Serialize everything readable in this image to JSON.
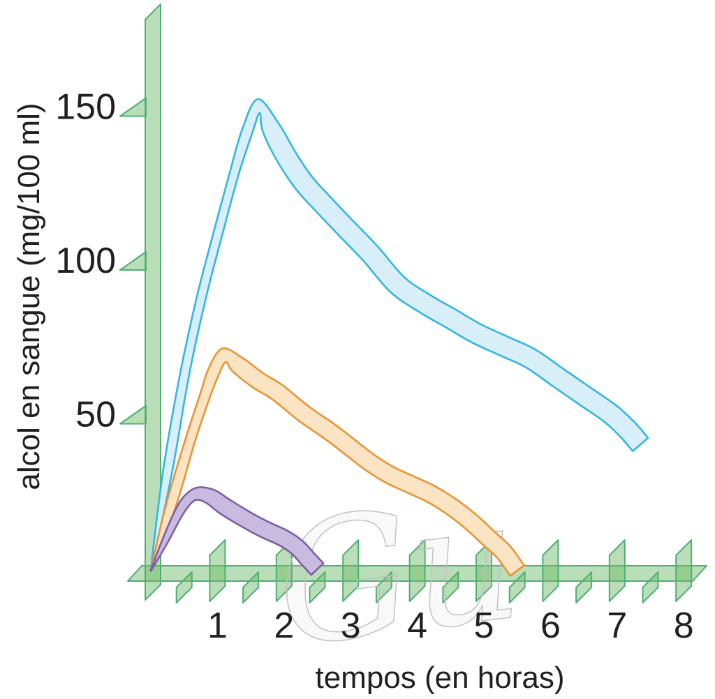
{
  "figure": {
    "watermark": "Gu",
    "background": "#ffffff"
  },
  "colors": {
    "axis_green_stroke": "#4FAF72",
    "axis_green_fill": "rgba(110,185,105,0.48)",
    "text": "#231F20",
    "watermark_gray": "#c1c1c1"
  },
  "chart_data": {
    "type": "line",
    "style": "thick-ribbon-curves-on-3d-green-axes",
    "title": "",
    "xlabel": "tempos (en horas)",
    "ylabel": "alcol en sangue (mg/100 ml)",
    "xlim": [
      0,
      8.45
    ],
    "ylim": [
      0,
      185
    ],
    "xticks": [
      1,
      2,
      3,
      4,
      5,
      6,
      7,
      8
    ],
    "xticks_minor": [
      0.5,
      1.5,
      2.5,
      3.5,
      4.5,
      5.5,
      6.5,
      7.5
    ],
    "yticks": [
      50,
      100,
      150
    ],
    "grid": false,
    "legend": false,
    "series": [
      {
        "name": "blue",
        "stroke": "#33B6E3",
        "fill": "#D8EEF9",
        "peak_t": 1.62,
        "points": [
          [
            0,
            0
          ],
          [
            0.25,
            32
          ],
          [
            0.5,
            63
          ],
          [
            0.75,
            88
          ],
          [
            1.0,
            109
          ],
          [
            1.25,
            129
          ],
          [
            1.45,
            143
          ],
          [
            1.62,
            151
          ],
          [
            1.8,
            144
          ],
          [
            2.05,
            134
          ],
          [
            2.3,
            126
          ],
          [
            2.55,
            120
          ],
          [
            2.9,
            112
          ],
          [
            3.3,
            103
          ],
          [
            3.7,
            93
          ],
          [
            4.1,
            87
          ],
          [
            4.5,
            82
          ],
          [
            4.9,
            77
          ],
          [
            5.3,
            73
          ],
          [
            5.7,
            69
          ],
          [
            6.1,
            63
          ],
          [
            6.5,
            57
          ],
          [
            6.9,
            51
          ],
          [
            7.15,
            46
          ],
          [
            7.35,
            41
          ]
        ]
      },
      {
        "name": "orange",
        "stroke": "#E99434",
        "fill": "#FBE4C4",
        "peak_t": 1.05,
        "points": [
          [
            0,
            0
          ],
          [
            0.3,
            21
          ],
          [
            0.6,
            43
          ],
          [
            0.8,
            56
          ],
          [
            0.95,
            65
          ],
          [
            1.1,
            70
          ],
          [
            1.3,
            67
          ],
          [
            1.6,
            62
          ],
          [
            1.9,
            58
          ],
          [
            2.3,
            51
          ],
          [
            2.7,
            45
          ],
          [
            3.0,
            40
          ],
          [
            3.3,
            35
          ],
          [
            3.6,
            31
          ],
          [
            3.9,
            28
          ],
          [
            4.2,
            25
          ],
          [
            4.5,
            21
          ],
          [
            4.8,
            16
          ],
          [
            5.1,
            10
          ],
          [
            5.3,
            6
          ],
          [
            5.5,
            0
          ]
        ]
      },
      {
        "name": "purple",
        "stroke": "#7C60A5",
        "fill": "#C9BADF",
        "peak_t": 0.7,
        "points": [
          [
            0,
            0
          ],
          [
            0.2,
            9
          ],
          [
            0.4,
            18
          ],
          [
            0.55,
            23
          ],
          [
            0.7,
            25
          ],
          [
            0.9,
            24
          ],
          [
            1.1,
            21
          ],
          [
            1.4,
            17
          ],
          [
            1.7,
            13.5
          ],
          [
            2.0,
            10.5
          ],
          [
            2.2,
            7.5
          ],
          [
            2.35,
            4
          ],
          [
            2.5,
            0.5
          ]
        ]
      }
    ]
  }
}
